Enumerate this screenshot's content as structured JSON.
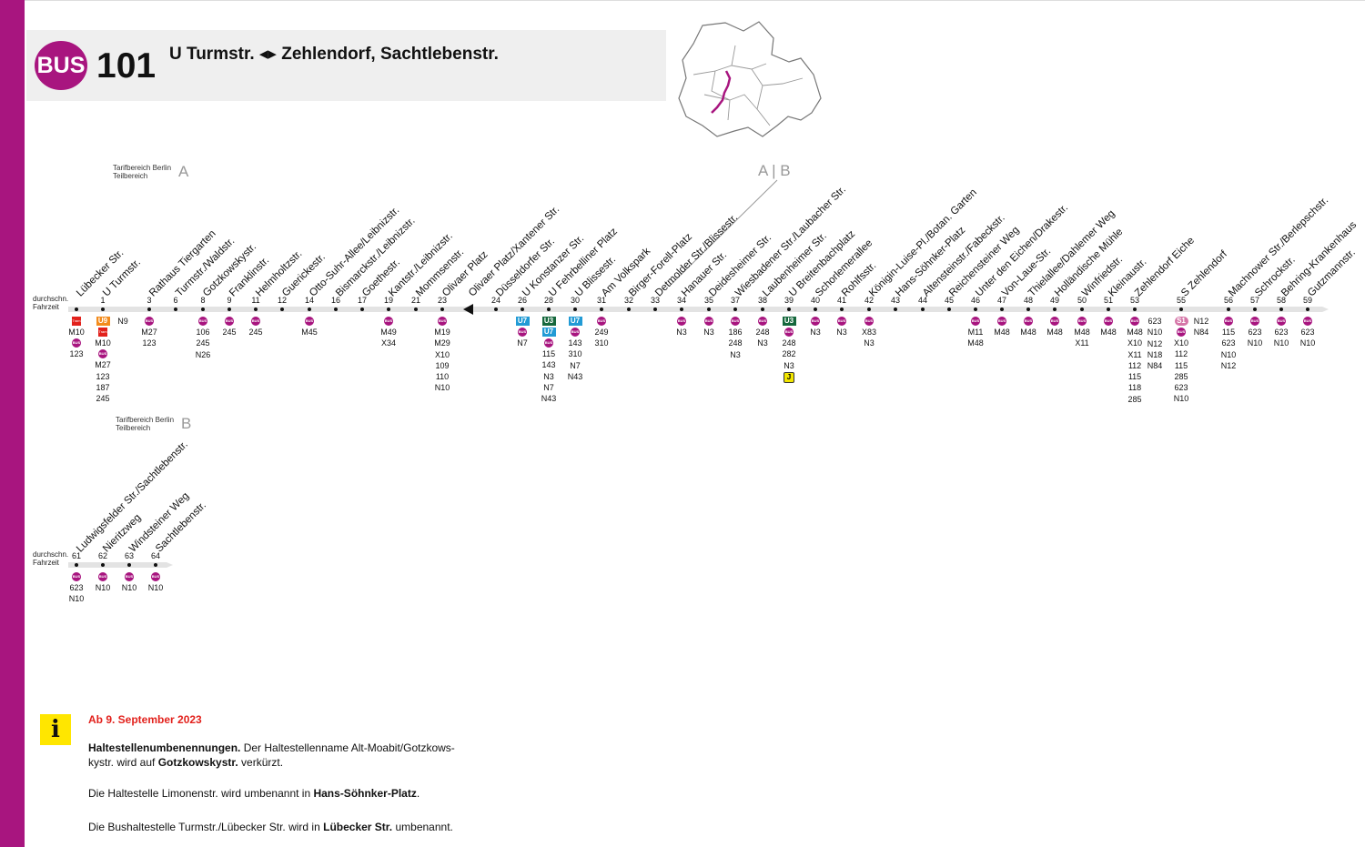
{
  "header": {
    "badge": "BUS",
    "line": "101",
    "route": "U Turmstr. ◂▸ Zehlendorf, Sachtlebenstr."
  },
  "colors": {
    "brand": "#a8157f",
    "u7": "#229bd5",
    "u3": "#16683d",
    "u9": "#f38b1c",
    "s1": "#d576a8",
    "tram": "#e2211c",
    "notice": "#e2211c",
    "info": "#ffe600"
  },
  "zones": {
    "a_label1": "Tarifbereich Berlin",
    "a_label2": "Teilbereich",
    "a_letter": "A",
    "b_label1": "Tarifbereich Berlin",
    "b_label2": "Teilbereich",
    "b_letter": "B",
    "boundary": "A | B"
  },
  "row1": {
    "ft1": "durchschn.",
    "ft2": "Fahrzeit",
    "stops": [
      {
        "name": "Lübecker Str.",
        "time": "",
        "conn": [
          {
            "t": "tram",
            "v": "Tram"
          },
          {
            "t": "txt",
            "v": "M10"
          },
          {
            "t": "bus",
            "v": "BUS"
          },
          {
            "t": "txt",
            "v": "123"
          }
        ]
      },
      {
        "name": "U Turmstr.",
        "time": "1",
        "conn": [
          {
            "t": "u9",
            "v": "U9"
          },
          {
            "t": "tram",
            "v": "Tram"
          },
          {
            "t": "txt",
            "v": "M10"
          },
          {
            "t": "bus",
            "v": "BUS"
          },
          {
            "t": "txt",
            "v": "M27"
          },
          {
            "t": "txt",
            "v": "123"
          },
          {
            "t": "txt",
            "v": "187"
          },
          {
            "t": "txt",
            "v": "245"
          }
        ],
        "conn2": [
          {
            "t": "txt",
            "v": "N9"
          }
        ]
      },
      {
        "name": "Rathaus Tiergarten",
        "time": "3",
        "conn": [
          {
            "t": "bus",
            "v": "BUS"
          },
          {
            "t": "txt",
            "v": "M27"
          },
          {
            "t": "txt",
            "v": "123"
          }
        ]
      },
      {
        "name": "Turmstr./Waldstr.",
        "time": "6",
        "conn": []
      },
      {
        "name": "Gotzkowskystr.",
        "time": "8",
        "conn": [
          {
            "t": "bus",
            "v": "BUS"
          },
          {
            "t": "txt",
            "v": "106"
          },
          {
            "t": "txt",
            "v": "245"
          },
          {
            "t": "txt",
            "v": "N26"
          }
        ]
      },
      {
        "name": "Franklinstr.",
        "time": "9",
        "conn": [
          {
            "t": "bus",
            "v": "BUS"
          },
          {
            "t": "txt",
            "v": "245"
          }
        ]
      },
      {
        "name": "Helmholtzstr.",
        "time": "11",
        "conn": [
          {
            "t": "bus",
            "v": "BUS"
          },
          {
            "t": "txt",
            "v": "245"
          }
        ]
      },
      {
        "name": "Guerickestr.",
        "time": "12",
        "conn": []
      },
      {
        "name": "Otto-Suhr-Allee/Leibnizstr.",
        "time": "14",
        "conn": [
          {
            "t": "bus",
            "v": "BUS"
          },
          {
            "t": "txt",
            "v": "M45"
          }
        ]
      },
      {
        "name": "Bismarckstr./Leibnizstr.",
        "time": "16",
        "conn": []
      },
      {
        "name": "Goethestr.",
        "time": "17",
        "conn": []
      },
      {
        "name": "Kantstr./Leibnizstr.",
        "time": "19",
        "conn": [
          {
            "t": "bus",
            "v": "BUS"
          },
          {
            "t": "txt",
            "v": "M49"
          },
          {
            "t": "txt",
            "v": "X34"
          }
        ]
      },
      {
        "name": "Mommsenstr.",
        "time": "21",
        "conn": []
      },
      {
        "name": "Olivaer Platz",
        "time": "23",
        "conn": [
          {
            "t": "bus",
            "v": "BUS"
          },
          {
            "t": "txt",
            "v": "M19"
          },
          {
            "t": "txt",
            "v": "M29"
          },
          {
            "t": "txt",
            "v": "X10"
          },
          {
            "t": "txt",
            "v": "109"
          },
          {
            "t": "txt",
            "v": "110"
          },
          {
            "t": "txt",
            "v": "N10"
          }
        ]
      },
      {
        "name": "Olivaer Platz/Xantener Str.",
        "time": "",
        "conn": [],
        "tri": true
      },
      {
        "name": "Düsseldorfer Str.",
        "time": "24",
        "conn": []
      },
      {
        "name": "U Konstanzer Str.",
        "time": "26",
        "conn": [
          {
            "t": "u7",
            "v": "U7"
          },
          {
            "t": "bus",
            "v": "BUS"
          },
          {
            "t": "txt",
            "v": "N7"
          }
        ]
      },
      {
        "name": "U Fehrbelliner Platz",
        "time": "28",
        "conn": [
          {
            "t": "u3",
            "v": "U3"
          },
          {
            "t": "u7",
            "v": "U7"
          },
          {
            "t": "bus",
            "v": "BUS"
          },
          {
            "t": "txt",
            "v": "115"
          },
          {
            "t": "txt",
            "v": "143"
          },
          {
            "t": "txt",
            "v": "N3"
          },
          {
            "t": "txt",
            "v": "N7"
          },
          {
            "t": "txt",
            "v": "N43"
          }
        ]
      },
      {
        "name": "U Blissestr.",
        "time": "30",
        "conn": [
          {
            "t": "u7",
            "v": "U7"
          },
          {
            "t": "bus",
            "v": "BUS"
          },
          {
            "t": "txt",
            "v": "143"
          },
          {
            "t": "txt",
            "v": "310"
          },
          {
            "t": "txt",
            "v": "N7"
          },
          {
            "t": "txt",
            "v": "N43"
          }
        ]
      },
      {
        "name": "Am Volkspark",
        "time": "31",
        "conn": [
          {
            "t": "bus",
            "v": "BUS"
          },
          {
            "t": "txt",
            "v": "249"
          },
          {
            "t": "txt",
            "v": "310"
          }
        ]
      },
      {
        "name": "Birger-Forell-Platz",
        "time": "32",
        "conn": []
      },
      {
        "name": "Detmolder Str./Blissestr.",
        "time": "33",
        "conn": []
      },
      {
        "name": "Hanauer Str.",
        "time": "34",
        "conn": [
          {
            "t": "bus",
            "v": "BUS"
          },
          {
            "t": "txt",
            "v": "N3"
          }
        ]
      },
      {
        "name": "Deidesheimer Str.",
        "time": "35",
        "conn": [
          {
            "t": "bus",
            "v": "BUS"
          },
          {
            "t": "txt",
            "v": "N3"
          }
        ]
      },
      {
        "name": "Wiesbadener Str./Laubacher Str.",
        "time": "37",
        "conn": [
          {
            "t": "bus",
            "v": "BUS"
          },
          {
            "t": "txt",
            "v": "186"
          },
          {
            "t": "txt",
            "v": "248"
          },
          {
            "t": "txt",
            "v": "N3"
          }
        ]
      },
      {
        "name": "Laubenheimer Str.",
        "time": "38",
        "conn": [
          {
            "t": "bus",
            "v": "BUS"
          },
          {
            "t": "txt",
            "v": "248"
          },
          {
            "t": "txt",
            "v": "N3"
          }
        ]
      },
      {
        "name": "U Breitenbachplatz",
        "time": "39",
        "conn": [
          {
            "t": "u3",
            "v": "U3"
          },
          {
            "t": "bus",
            "v": "BUS"
          },
          {
            "t": "txt",
            "v": "248"
          },
          {
            "t": "txt",
            "v": "282"
          },
          {
            "t": "txt",
            "v": "N3"
          },
          {
            "t": "j",
            "v": "J"
          }
        ]
      },
      {
        "name": "Schorlemerallee",
        "time": "40",
        "conn": [
          {
            "t": "bus",
            "v": "BUS"
          },
          {
            "t": "txt",
            "v": "N3"
          }
        ]
      },
      {
        "name": "Rohlfsstr.",
        "time": "41",
        "conn": [
          {
            "t": "bus",
            "v": "BUS"
          },
          {
            "t": "txt",
            "v": "N3"
          }
        ]
      },
      {
        "name": "Königin-Luise-Pl./Botan. Garten",
        "time": "42",
        "conn": [
          {
            "t": "bus",
            "v": "BUS"
          },
          {
            "t": "txt",
            "v": "X83"
          },
          {
            "t": "txt",
            "v": "N3"
          }
        ]
      },
      {
        "name": "Hans-Söhnker-Platz",
        "time": "43",
        "conn": []
      },
      {
        "name": "Altensteinstr./Fabeckstr.",
        "time": "44",
        "conn": []
      },
      {
        "name": "Reichensteiner Weg",
        "time": "45",
        "conn": []
      },
      {
        "name": "Unter den Eichen/Drakestr.",
        "time": "46",
        "conn": [
          {
            "t": "bus",
            "v": "BUS"
          },
          {
            "t": "txt",
            "v": "M11"
          },
          {
            "t": "txt",
            "v": "M48"
          }
        ]
      },
      {
        "name": "Von-Laue-Str.",
        "time": "47",
        "conn": [
          {
            "t": "bus",
            "v": "BUS"
          },
          {
            "t": "txt",
            "v": "M48"
          }
        ]
      },
      {
        "name": "Thielallee/Dahlemer Weg",
        "time": "48",
        "conn": [
          {
            "t": "bus",
            "v": "BUS"
          },
          {
            "t": "txt",
            "v": "M48"
          }
        ]
      },
      {
        "name": "Holländische Mühle",
        "time": "49",
        "conn": [
          {
            "t": "bus",
            "v": "BUS"
          },
          {
            "t": "txt",
            "v": "M48"
          }
        ]
      },
      {
        "name": "Winfriedstr.",
        "time": "50",
        "conn": [
          {
            "t": "bus",
            "v": "BUS"
          },
          {
            "t": "txt",
            "v": "M48"
          },
          {
            "t": "txt",
            "v": "X11"
          }
        ]
      },
      {
        "name": "Kleinaustr.",
        "time": "51",
        "conn": [
          {
            "t": "bus",
            "v": "BUS"
          },
          {
            "t": "txt",
            "v": "M48"
          }
        ]
      },
      {
        "name": "Zehlendorf Eiche",
        "time": "53",
        "conn": [
          {
            "t": "bus",
            "v": "BUS"
          },
          {
            "t": "txt",
            "v": "M48"
          },
          {
            "t": "txt",
            "v": "X10"
          },
          {
            "t": "txt",
            "v": "X11"
          },
          {
            "t": "txt",
            "v": "112"
          },
          {
            "t": "txt",
            "v": "115"
          },
          {
            "t": "txt",
            "v": "118"
          },
          {
            "t": "txt",
            "v": "285"
          }
        ],
        "conn2": [
          {
            "t": "txt",
            "v": "623"
          },
          {
            "t": "txt",
            "v": "N10"
          },
          {
            "t": "txt",
            "v": "N12"
          },
          {
            "t": "txt",
            "v": "N18"
          },
          {
            "t": "txt",
            "v": "N84"
          }
        ]
      },
      {
        "name": "S Zehlendorf",
        "time": "55",
        "conn": [
          {
            "t": "s1",
            "v": "S1"
          },
          {
            "t": "bus",
            "v": "BUS"
          },
          {
            "t": "txt",
            "v": "X10"
          },
          {
            "t": "txt",
            "v": "112"
          },
          {
            "t": "txt",
            "v": "115"
          },
          {
            "t": "txt",
            "v": "285"
          },
          {
            "t": "txt",
            "v": "623"
          },
          {
            "t": "txt",
            "v": "N10"
          }
        ],
        "conn2": [
          {
            "t": "txt",
            "v": "N12"
          },
          {
            "t": "txt",
            "v": "N84"
          }
        ]
      },
      {
        "name": "Machnower Str./Berlepschstr.",
        "time": "56",
        "conn": [
          {
            "t": "bus",
            "v": "BUS"
          },
          {
            "t": "txt",
            "v": "115"
          },
          {
            "t": "txt",
            "v": "623"
          },
          {
            "t": "txt",
            "v": "N10"
          },
          {
            "t": "txt",
            "v": "N12"
          }
        ]
      },
      {
        "name": "Schrockstr.",
        "time": "57",
        "conn": [
          {
            "t": "bus",
            "v": "BUS"
          },
          {
            "t": "txt",
            "v": "623"
          },
          {
            "t": "txt",
            "v": "N10"
          }
        ]
      },
      {
        "name": "Behring-Krankenhaus",
        "time": "58",
        "conn": [
          {
            "t": "bus",
            "v": "BUS"
          },
          {
            "t": "txt",
            "v": "623"
          },
          {
            "t": "txt",
            "v": "N10"
          }
        ]
      },
      {
        "name": "Gutzmannstr.",
        "time": "59",
        "conn": [
          {
            "t": "bus",
            "v": "BUS"
          },
          {
            "t": "txt",
            "v": "623"
          },
          {
            "t": "txt",
            "v": "N10"
          }
        ]
      }
    ]
  },
  "row2": {
    "ft1": "durchschn.",
    "ft2": "Fahrzeit",
    "stops": [
      {
        "name": "Ludwigsfelder Str./Sachtlebenstr.",
        "time": "61",
        "conn": [
          {
            "t": "bus",
            "v": "BUS"
          },
          {
            "t": "txt",
            "v": "623"
          },
          {
            "t": "txt",
            "v": "N10"
          }
        ]
      },
      {
        "name": "Nieritzweg",
        "time": "62",
        "conn": [
          {
            "t": "bus",
            "v": "BUS"
          },
          {
            "t": "txt",
            "v": "N10"
          }
        ]
      },
      {
        "name": "Windsteiner Weg",
        "time": "63",
        "conn": [
          {
            "t": "bus",
            "v": "BUS"
          },
          {
            "t": "txt",
            "v": "N10"
          }
        ]
      },
      {
        "name": "Sachtlebenstr.",
        "time": "64",
        "conn": [
          {
            "t": "bus",
            "v": "BUS"
          },
          {
            "t": "txt",
            "v": "N10"
          }
        ]
      }
    ]
  },
  "notice": {
    "icon": "info-icon",
    "date": "Ab 9. September 2023",
    "p1_bold": "Haltestellenumbenennungen.",
    "p1_a": " Der Haltestellenname Alt-Moabit/Gotzkows-kystr. wird auf ",
    "p1_b": "Gotzkowskystr.",
    "p1_c": " verkürzt.",
    "p2_a": "Die Haltestelle Limonenstr. wird umbenannt in ",
    "p2_b": "Hans-Söhnker-Platz",
    "p2_c": ".",
    "p3_a": "Die Bushaltestelle Turmstr./Lübecker Str. wird in ",
    "p3_b": "Lübecker Str.",
    "p3_c": " umbenannt."
  }
}
